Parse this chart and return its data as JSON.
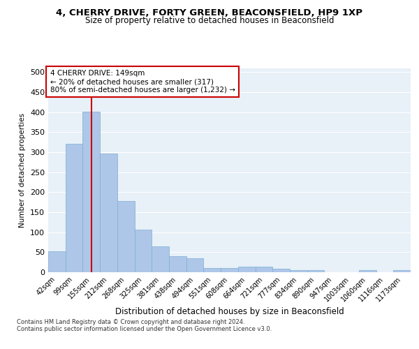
{
  "title1": "4, CHERRY DRIVE, FORTY GREEN, BEACONSFIELD, HP9 1XP",
  "title2": "Size of property relative to detached houses in Beaconsfield",
  "xlabel": "Distribution of detached houses by size in Beaconsfield",
  "ylabel": "Number of detached properties",
  "categories": [
    "42sqm",
    "99sqm",
    "155sqm",
    "212sqm",
    "268sqm",
    "325sqm",
    "381sqm",
    "438sqm",
    "494sqm",
    "551sqm",
    "608sqm",
    "664sqm",
    "721sqm",
    "777sqm",
    "834sqm",
    "890sqm",
    "947sqm",
    "1003sqm",
    "1060sqm",
    "1116sqm",
    "1173sqm"
  ],
  "values": [
    53,
    320,
    401,
    297,
    178,
    107,
    65,
    40,
    35,
    10,
    10,
    14,
    14,
    8,
    6,
    5,
    0,
    0,
    5,
    0,
    6
  ],
  "bar_color": "#aec6e8",
  "bar_edge_color": "#7bafd4",
  "vline_x": 2,
  "vline_color": "#cc0000",
  "annotation_line1": "4 CHERRY DRIVE: 149sqm",
  "annotation_line2": "← 20% of detached houses are smaller (317)",
  "annotation_line3": "80% of semi-detached houses are larger (1,232) →",
  "annotation_box_color": "#ffffff",
  "annotation_box_edge": "#cc0000",
  "footer1": "Contains HM Land Registry data © Crown copyright and database right 2024.",
  "footer2": "Contains public sector information licensed under the Open Government Licence v3.0.",
  "ylim": [
    0,
    510
  ],
  "yticks": [
    0,
    50,
    100,
    150,
    200,
    250,
    300,
    350,
    400,
    450,
    500
  ],
  "bg_color": "#e8f0f8",
  "fig_bg_color": "#ffffff"
}
